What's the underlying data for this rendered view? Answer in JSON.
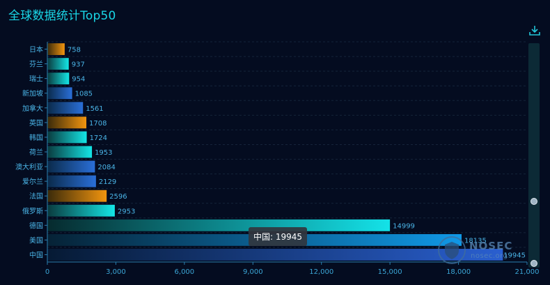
{
  "title": "全球数据统计Top50",
  "toolbar": {
    "download_icon": "download-icon"
  },
  "tooltip": {
    "text": "中国: 19945"
  },
  "watermark": {
    "brand": "NOSEC",
    "site": "nosec.org"
  },
  "colors": {
    "background": "#040c20",
    "title": "#1ad6e6",
    "label": "#4ab4e6",
    "orange": "#e08a14",
    "teal": "#19d2d6",
    "blue": "#2466c8"
  },
  "chart_data": {
    "type": "bar",
    "orientation": "horizontal",
    "categories": [
      "中国",
      "美国",
      "德国",
      "俄罗斯",
      "法国",
      "爱尔兰",
      "澳大利亚",
      "荷兰",
      "韩国",
      "英国",
      "加拿大",
      "新加坡",
      "瑞士",
      "芬兰",
      "日本"
    ],
    "values": [
      19945,
      18135,
      14999,
      2953,
      2596,
      2129,
      2084,
      1953,
      1724,
      1708,
      1561,
      1085,
      954,
      937,
      758
    ],
    "color_groups": [
      "blue",
      "blue",
      "teal",
      "teal",
      "orange",
      "blue",
      "blue",
      "teal",
      "teal",
      "orange",
      "blue",
      "blue",
      "teal",
      "teal",
      "orange"
    ],
    "xlim": [
      0,
      21000
    ],
    "xticks": [
      "0",
      "3,000",
      "6,000",
      "9,000",
      "12,000",
      "15,000",
      "18,000",
      "21,000"
    ],
    "grid": false,
    "legend": "none",
    "datazoom": "vertical slider on right"
  }
}
